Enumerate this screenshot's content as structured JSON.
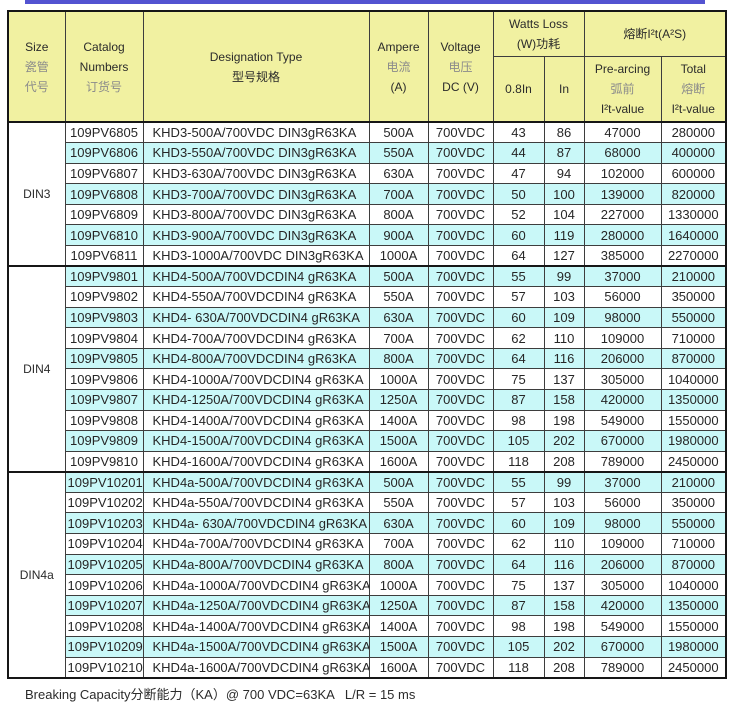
{
  "colors": {
    "header_bg": "#f1f1a1",
    "row_alt_bg": "#c9f8f8",
    "top_rule": "#5353d1"
  },
  "footer": {
    "note": "Breaking Capacity分断能力（KA）@ 700 VDC=63KA   L/R = 15 ms"
  },
  "table": {
    "headers": {
      "size": [
        "Size",
        "瓷管",
        "代号"
      ],
      "catalog": [
        "Catalog",
        "Numbers",
        "订货号"
      ],
      "designation": [
        "Designation Type",
        "型号规格"
      ],
      "ampere": [
        "Ampere",
        "电流",
        "(A)"
      ],
      "voltage": [
        "Voltage",
        "电压",
        "DC (V)"
      ],
      "watts_loss": [
        "Watts Loss",
        "(W)功耗"
      ],
      "i2t_group": "熔断I²t(A²S)",
      "watts_sub": [
        "0.8In",
        "In"
      ],
      "pre_arcing": [
        "Pre-arcing",
        "弧前",
        "I²t-value"
      ],
      "total": [
        "Total",
        "熔断",
        "I²t-value"
      ]
    },
    "groups": [
      {
        "size": "DIN3",
        "rows": [
          {
            "catalog": "109PV6805",
            "designation": "KHD3-500A/700VDC DIN3gR63KA",
            "ampere": "500A",
            "voltage": "700VDC",
            "watts_08in": "43",
            "watts_in": "86",
            "pre_arcing_i2t": "47000",
            "total_i2t": "280000"
          },
          {
            "catalog": "109PV6806",
            "designation": "KHD3-550A/700VDC DIN3gR63KA",
            "ampere": "550A",
            "voltage": "700VDC",
            "watts_08in": "44",
            "watts_in": "87",
            "pre_arcing_i2t": "68000",
            "total_i2t": "400000"
          },
          {
            "catalog": "109PV6807",
            "designation": "KHD3-630A/700VDC DIN3gR63KA",
            "ampere": "630A",
            "voltage": "700VDC",
            "watts_08in": "47",
            "watts_in": "94",
            "pre_arcing_i2t": "102000",
            "total_i2t": "600000"
          },
          {
            "catalog": "109PV6808",
            "designation": "KHD3-700A/700VDC DIN3gR63KA",
            "ampere": "700A",
            "voltage": "700VDC",
            "watts_08in": "50",
            "watts_in": "100",
            "pre_arcing_i2t": "139000",
            "total_i2t": "820000"
          },
          {
            "catalog": "109PV6809",
            "designation": "KHD3-800A/700VDC DIN3gR63KA",
            "ampere": "800A",
            "voltage": "700VDC",
            "watts_08in": "52",
            "watts_in": "104",
            "pre_arcing_i2t": "227000",
            "total_i2t": "1330000"
          },
          {
            "catalog": "109PV6810",
            "designation": "KHD3-900A/700VDC DIN3gR63KA",
            "ampere": "900A",
            "voltage": "700VDC",
            "watts_08in": "60",
            "watts_in": "119",
            "pre_arcing_i2t": "280000",
            "total_i2t": "1640000"
          },
          {
            "catalog": "109PV6811",
            "designation": "KHD3-1000A/700VDC DIN3gR63KA",
            "ampere": "1000A",
            "voltage": "700VDC",
            "watts_08in": "64",
            "watts_in": "127",
            "pre_arcing_i2t": "385000",
            "total_i2t": "2270000"
          }
        ]
      },
      {
        "size": "DIN4",
        "rows": [
          {
            "catalog": "109PV9801",
            "designation": "KHD4-500A/700VDCDIN4 gR63KA",
            "ampere": "500A",
            "voltage": "700VDC",
            "watts_08in": "55",
            "watts_in": "99",
            "pre_arcing_i2t": "37000",
            "total_i2t": "210000"
          },
          {
            "catalog": "109PV9802",
            "designation": "KHD4-550A/700VDCDIN4 gR63KA",
            "ampere": "550A",
            "voltage": "700VDC",
            "watts_08in": "57",
            "watts_in": "103",
            "pre_arcing_i2t": "56000",
            "total_i2t": "350000"
          },
          {
            "catalog": "109PV9803",
            "designation": "KHD4- 630A/700VDCDIN4 gR63KA",
            "ampere": "630A",
            "voltage": "700VDC",
            "watts_08in": "60",
            "watts_in": "109",
            "pre_arcing_i2t": "98000",
            "total_i2t": "550000"
          },
          {
            "catalog": "109PV9804",
            "designation": "KHD4-700A/700VDCDIN4 gR63KA",
            "ampere": "700A",
            "voltage": "700VDC",
            "watts_08in": "62",
            "watts_in": "110",
            "pre_arcing_i2t": "109000",
            "total_i2t": "710000"
          },
          {
            "catalog": "109PV9805",
            "designation": "KHD4-800A/700VDCDIN4 gR63KA",
            "ampere": "800A",
            "voltage": "700VDC",
            "watts_08in": "64",
            "watts_in": "116",
            "pre_arcing_i2t": "206000",
            "total_i2t": "870000"
          },
          {
            "catalog": "109PV9806",
            "designation": "KHD4-1000A/700VDCDIN4 gR63KA",
            "ampere": "1000A",
            "voltage": "700VDC",
            "watts_08in": "75",
            "watts_in": "137",
            "pre_arcing_i2t": "305000",
            "total_i2t": "1040000"
          },
          {
            "catalog": "109PV9807",
            "designation": "KHD4-1250A/700VDCDIN4 gR63KA",
            "ampere": "1250A",
            "voltage": "700VDC",
            "watts_08in": "87",
            "watts_in": "158",
            "pre_arcing_i2t": "420000",
            "total_i2t": "1350000"
          },
          {
            "catalog": "109PV9808",
            "designation": "KHD4-1400A/700VDCDIN4 gR63KA",
            "ampere": "1400A",
            "voltage": "700VDC",
            "watts_08in": "98",
            "watts_in": "198",
            "pre_arcing_i2t": "549000",
            "total_i2t": "1550000"
          },
          {
            "catalog": "109PV9809",
            "designation": "KHD4-1500A/700VDCDIN4 gR63KA",
            "ampere": "1500A",
            "voltage": "700VDC",
            "watts_08in": "105",
            "watts_in": "202",
            "pre_arcing_i2t": "670000",
            "total_i2t": "1980000"
          },
          {
            "catalog": "109PV9810",
            "designation": "KHD4-1600A/700VDCDIN4 gR63KA",
            "ampere": "1600A",
            "voltage": "700VDC",
            "watts_08in": "118",
            "watts_in": "208",
            "pre_arcing_i2t": "789000",
            "total_i2t": "2450000"
          }
        ]
      },
      {
        "size": "DIN4a",
        "rows": [
          {
            "catalog": "109PV10201",
            "designation": "KHD4a-500A/700VDCDIN4 gR63KA",
            "ampere": "500A",
            "voltage": "700VDC",
            "watts_08in": "55",
            "watts_in": "99",
            "pre_arcing_i2t": "37000",
            "total_i2t": "210000"
          },
          {
            "catalog": "109PV10202",
            "designation": "KHD4a-550A/700VDCDIN4 gR63KA",
            "ampere": "550A",
            "voltage": "700VDC",
            "watts_08in": "57",
            "watts_in": "103",
            "pre_arcing_i2t": "56000",
            "total_i2t": "350000"
          },
          {
            "catalog": "109PV10203",
            "designation": "KHD4a- 630A/700VDCDIN4 gR63KA",
            "ampere": "630A",
            "voltage": "700VDC",
            "watts_08in": "60",
            "watts_in": "109",
            "pre_arcing_i2t": "98000",
            "total_i2t": "550000"
          },
          {
            "catalog": "109PV10204",
            "designation": "KHD4a-700A/700VDCDIN4 gR63KA",
            "ampere": "700A",
            "voltage": "700VDC",
            "watts_08in": "62",
            "watts_in": "110",
            "pre_arcing_i2t": "109000",
            "total_i2t": "710000"
          },
          {
            "catalog": "109PV10205",
            "designation": "KHD4a-800A/700VDCDIN4 gR63KA",
            "ampere": "800A",
            "voltage": "700VDC",
            "watts_08in": "64",
            "watts_in": "116",
            "pre_arcing_i2t": "206000",
            "total_i2t": "870000"
          },
          {
            "catalog": "109PV10206",
            "designation": "KHD4a-1000A/700VDCDIN4 gR63KA",
            "ampere": "1000A",
            "voltage": "700VDC",
            "watts_08in": "75",
            "watts_in": "137",
            "pre_arcing_i2t": "305000",
            "total_i2t": "1040000"
          },
          {
            "catalog": "109PV10207",
            "designation": "KHD4a-1250A/700VDCDIN4 gR63KA",
            "ampere": "1250A",
            "voltage": "700VDC",
            "watts_08in": "87",
            "watts_in": "158",
            "pre_arcing_i2t": "420000",
            "total_i2t": "1350000"
          },
          {
            "catalog": "109PV10208",
            "designation": "KHD4a-1400A/700VDCDIN4 gR63KA",
            "ampere": "1400A",
            "voltage": "700VDC",
            "watts_08in": "98",
            "watts_in": "198",
            "pre_arcing_i2t": "549000",
            "total_i2t": "1550000"
          },
          {
            "catalog": "109PV10209",
            "designation": "KHD4a-1500A/700VDCDIN4 gR63KA",
            "ampere": "1500A",
            "voltage": "700VDC",
            "watts_08in": "105",
            "watts_in": "202",
            "pre_arcing_i2t": "670000",
            "total_i2t": "1980000"
          },
          {
            "catalog": "109PV10210",
            "designation": "KHD4a-1600A/700VDCDIN4 gR63KA",
            "ampere": "1600A",
            "voltage": "700VDC",
            "watts_08in": "118",
            "watts_in": "208",
            "pre_arcing_i2t": "789000",
            "total_i2t": "2450000"
          }
        ]
      }
    ]
  }
}
